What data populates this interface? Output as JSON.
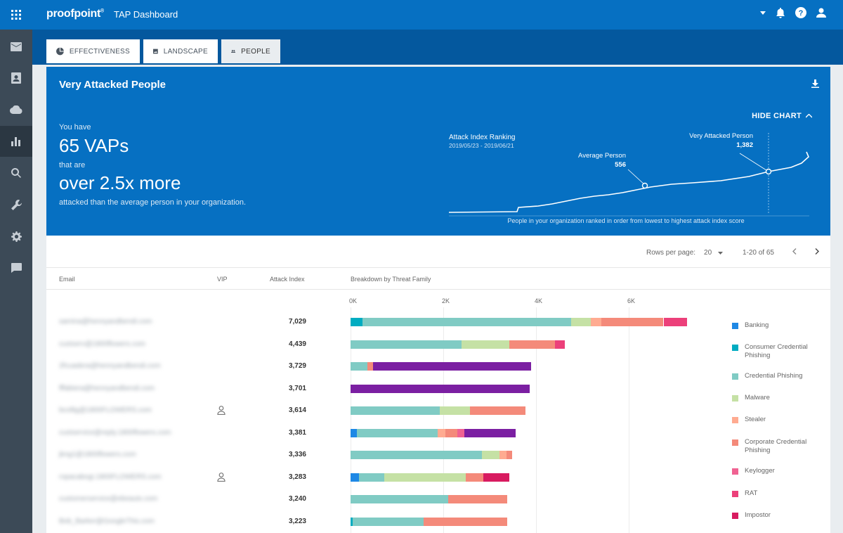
{
  "app": {
    "brand": "proofpoint",
    "title": "TAP Dashboard"
  },
  "sidebar": {
    "items": [
      {
        "name": "mail-icon"
      },
      {
        "name": "contact-card-icon"
      },
      {
        "name": "cloud-icon"
      },
      {
        "name": "bar-chart-icon",
        "active": true
      },
      {
        "name": "search-icon"
      },
      {
        "name": "wrench-icon"
      },
      {
        "name": "gear-icon"
      },
      {
        "name": "chat-icon"
      }
    ]
  },
  "tabs": [
    {
      "label": "EFFECTIVENESS",
      "icon": "pie-chart-icon"
    },
    {
      "label": "LANDSCAPE",
      "icon": "image-icon"
    },
    {
      "label": "PEOPLE",
      "icon": "people-icon",
      "active": true
    }
  ],
  "hero": {
    "title": "Very Attacked People",
    "hide_chart": "HIDE CHART",
    "you_have": "You have",
    "vap_count": "65 VAPs",
    "that_are": "that are",
    "multiplier": "over 2.5x more",
    "suffix": "attacked than the average person in your organization."
  },
  "ranking_chart": {
    "title": "Attack Index Ranking",
    "date_range": "2019/05/23 - 2019/06/21",
    "average_label": "Average Person",
    "average_value": "556",
    "vap_label": "Very Attacked Person",
    "vap_value": "1,382",
    "caption": "People in your organization ranked in order from lowest to highest attack index score"
  },
  "pager": {
    "rows_per_page_label": "Rows per page:",
    "rows_per_page": "20",
    "range": "1-20 of 65"
  },
  "columns": {
    "email": "Email",
    "vip": "VIP",
    "attack_index": "Attack Index",
    "breakdown": "Breakdown by Threat Family"
  },
  "colors": {
    "Banking": "#1e88e5",
    "Consumer Credential Phishing": "#00acc1",
    "Credential Phishing": "#80cbc4",
    "Malware": "#c5e1a5",
    "Stealer": "#ffab91",
    "Corporate Credential Phishing": "#f48a7a",
    "Keylogger": "#f06292",
    "RAT": "#ec407a",
    "Impostor": "#d81b60",
    "Purple": "#7b1fa2"
  },
  "chart_data": {
    "type": "bar",
    "orientation": "horizontal",
    "stacked": true,
    "x_ticks": [
      "0K",
      "2K",
      "4K",
      "6K"
    ],
    "xlim": [
      0,
      7300
    ],
    "legend": [
      "Banking",
      "Consumer Credential Phishing",
      "Credential Phishing",
      "Malware",
      "Stealer",
      "Corporate Credential Phishing",
      "Keylogger",
      "RAT",
      "Impostor"
    ],
    "rows": [
      {
        "email": "samina@hennyandbendi.com",
        "vip": false,
        "attack_index": "7,029",
        "segments": [
          [
            "Consumer Credential Phishing",
            250
          ],
          [
            "Credential Phishing",
            4500
          ],
          [
            "Malware",
            430
          ],
          [
            "Stealer",
            230
          ],
          [
            "Corporate Credential Phishing",
            1340
          ],
          [
            "RAT",
            500
          ]
        ]
      },
      {
        "email": "custserv@1800flowers.com",
        "vip": false,
        "attack_index": "4,439",
        "segments": [
          [
            "Credential Phishing",
            2400
          ],
          [
            "Malware",
            1020
          ],
          [
            "Corporate Credential Phishing",
            990
          ],
          [
            "RAT",
            210
          ]
        ]
      },
      {
        "email": "2fcuadera@hennyandbendi.com",
        "vip": false,
        "attack_index": "3,729",
        "segments": [
          [
            "Credential Phishing",
            360
          ],
          [
            "Corporate Credential Phishing",
            130
          ],
          [
            "Purple",
            3410
          ]
        ]
      },
      {
        "email": "fffabiera@hennyandbendi.com",
        "vip": false,
        "attack_index": "3,701",
        "segments": [
          [
            "Purple",
            3860
          ]
        ]
      },
      {
        "email": "bcollig@1800FLOWERS.com",
        "vip": true,
        "attack_index": "3,614",
        "segments": [
          [
            "Credential Phishing",
            1920
          ],
          [
            "Malware",
            660
          ],
          [
            "Corporate Credential Phishing",
            1190
          ]
        ]
      },
      {
        "email": "custservice@reply.1800flowers.com",
        "vip": false,
        "attack_index": "3,381",
        "segments": [
          [
            "Banking",
            130
          ],
          [
            "Credential Phishing",
            1750
          ],
          [
            "Stealer",
            160
          ],
          [
            "Corporate Credential Phishing",
            260
          ],
          [
            "Keylogger",
            150
          ],
          [
            "Purple",
            1110
          ]
        ]
      },
      {
        "email": "jkng1@1800flowers.com",
        "vip": false,
        "attack_index": "3,336",
        "segments": [
          [
            "Credential Phishing",
            2840
          ],
          [
            "Malware",
            370
          ],
          [
            "Stealer",
            150
          ],
          [
            "Corporate Credential Phishing",
            120
          ]
        ]
      },
      {
        "email": "ropacabogi.1800FLOWERS.com",
        "vip": true,
        "attack_index": "3,283",
        "segments": [
          [
            "Banking",
            180
          ],
          [
            "Credential Phishing",
            540
          ],
          [
            "Malware",
            1770
          ],
          [
            "Corporate Credential Phishing",
            380
          ],
          [
            "Impostor",
            550
          ]
        ]
      },
      {
        "email": "customerservice@ebeautx.com",
        "vip": false,
        "attack_index": "3,240",
        "segments": [
          [
            "Credential Phishing",
            2110
          ],
          [
            "Corporate Credential Phishing",
            1270
          ]
        ]
      },
      {
        "email": "Bob_Barker@GoogleThis.com",
        "vip": false,
        "attack_index": "3,223",
        "segments": [
          [
            "Consumer Credential Phishing",
            40
          ],
          [
            "Credential Phishing",
            1530
          ],
          [
            "Corporate Credential Phishing",
            1810
          ]
        ]
      }
    ]
  }
}
